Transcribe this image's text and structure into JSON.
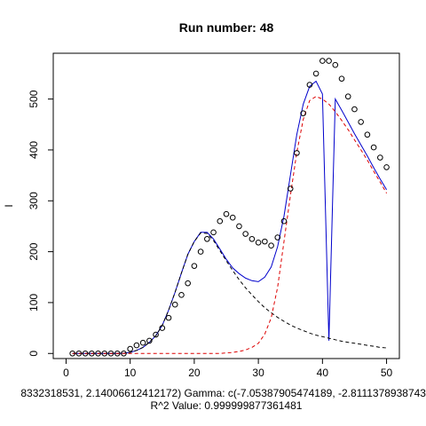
{
  "chart_data": {
    "type": "scatter",
    "title": "Run number:  48",
    "xlabel_line1": "8332318531, 2.14006612412172) Gamma:  c(-7.05387905474189, -2.81113789387438",
    "xlabel_line2": "R^2 Value:  0.999999877361481",
    "ylabel": "I",
    "xlim": [
      -2,
      52
    ],
    "ylim": [
      -10,
      590
    ],
    "x_ticks": [
      0,
      10,
      20,
      30,
      40,
      50
    ],
    "y_ticks": [
      0,
      100,
      200,
      300,
      400,
      500
    ],
    "x_tick_labels": [
      "0",
      "10",
      "20",
      "30",
      "40",
      "50"
    ],
    "y_tick_labels": [
      "0",
      "100",
      "200",
      "300",
      "400",
      "500"
    ],
    "grid": false,
    "colors": {
      "points": "#000000",
      "fit": "#0000cc",
      "component1": "#000000",
      "component2": "#dd0000"
    },
    "series": [
      {
        "kind": "points",
        "x": [
          1,
          2,
          3,
          4,
          5,
          6,
          7,
          8,
          9,
          10,
          11,
          12,
          13,
          14,
          15,
          16,
          17,
          18,
          19,
          20,
          21,
          22,
          23,
          24,
          25,
          26,
          27,
          28,
          29,
          30,
          31,
          32,
          33,
          34,
          35,
          36,
          37,
          38,
          39,
          40,
          41,
          42,
          43,
          44,
          45,
          46,
          47,
          48,
          49,
          50
        ],
        "y": [
          0,
          0,
          0,
          0,
          0,
          0,
          0,
          0,
          0,
          9,
          16,
          21,
          25,
          37,
          50,
          70,
          96,
          115,
          138,
          172,
          200,
          225,
          238,
          260,
          274,
          267,
          250,
          235,
          225,
          218,
          220,
          212,
          228,
          260,
          324,
          394,
          472,
          528,
          550,
          575,
          575,
          567,
          540,
          505,
          480,
          455,
          430,
          405,
          385,
          366
        ]
      },
      {
        "kind": "line",
        "x": [
          1,
          2,
          3,
          4,
          5,
          6,
          7,
          8,
          9,
          10,
          11,
          12,
          13,
          14,
          15,
          16,
          17,
          18,
          19,
          20,
          21,
          22,
          23,
          24,
          25,
          26,
          27,
          28,
          29,
          30,
          31,
          32,
          33,
          34,
          35,
          36,
          37,
          38,
          39,
          40,
          41,
          42,
          43,
          44,
          45,
          46,
          47,
          48,
          49,
          50
        ],
        "y": [
          0,
          0,
          0,
          0,
          0,
          0,
          0,
          0,
          0.5,
          2,
          6,
          12,
          22,
          35,
          55,
          85,
          120,
          158,
          195,
          220,
          238,
          238,
          225,
          205,
          185,
          168,
          157,
          148,
          143,
          141,
          150,
          170,
          210,
          270,
          350,
          430,
          490,
          525,
          535,
          510,
          25,
          500,
          478,
          455,
          432,
          410,
          388,
          365,
          343,
          322
        ]
      },
      {
        "kind": "dashed",
        "x": [
          1,
          2,
          3,
          4,
          5,
          6,
          7,
          8,
          9,
          10,
          11,
          12,
          13,
          14,
          15,
          16,
          17,
          18,
          19,
          20,
          21,
          22,
          23,
          24,
          25,
          26,
          27,
          28,
          29,
          30,
          31,
          32,
          33,
          34,
          35,
          36,
          37,
          38,
          39,
          40,
          41,
          42,
          43,
          44,
          45,
          46,
          47,
          48,
          49,
          50
        ],
        "y": [
          0,
          0,
          0,
          0,
          0,
          0,
          0,
          0,
          0.5,
          2,
          6,
          12,
          22,
          35,
          55,
          85,
          120,
          158,
          195,
          220,
          237,
          236,
          222,
          202,
          182,
          163,
          145,
          129,
          115,
          102,
          90,
          80,
          71,
          63,
          56,
          50,
          45,
          40,
          36,
          33,
          30,
          27,
          24,
          22,
          20,
          18,
          16,
          14,
          12,
          11
        ]
      },
      {
        "kind": "dashed",
        "x": [
          1,
          2,
          3,
          4,
          5,
          6,
          7,
          8,
          9,
          10,
          11,
          12,
          13,
          14,
          15,
          16,
          17,
          18,
          19,
          20,
          21,
          22,
          23,
          24,
          25,
          26,
          27,
          28,
          29,
          30,
          31,
          32,
          33,
          34,
          35,
          36,
          37,
          38,
          39,
          40,
          41,
          42,
          43,
          44,
          45,
          46,
          47,
          48,
          49,
          50
        ],
        "y": [
          0,
          0,
          0,
          0,
          0,
          0,
          0,
          0,
          0,
          0,
          0,
          0,
          0,
          0,
          0,
          0,
          0,
          0,
          0,
          0,
          0,
          0,
          0,
          0,
          1,
          2,
          4,
          7,
          12,
          20,
          38,
          70,
          130,
          220,
          310,
          395,
          460,
          497,
          505,
          500,
          490,
          475,
          458,
          440,
          420,
          400,
          380,
          358,
          337,
          315
        ]
      }
    ]
  }
}
